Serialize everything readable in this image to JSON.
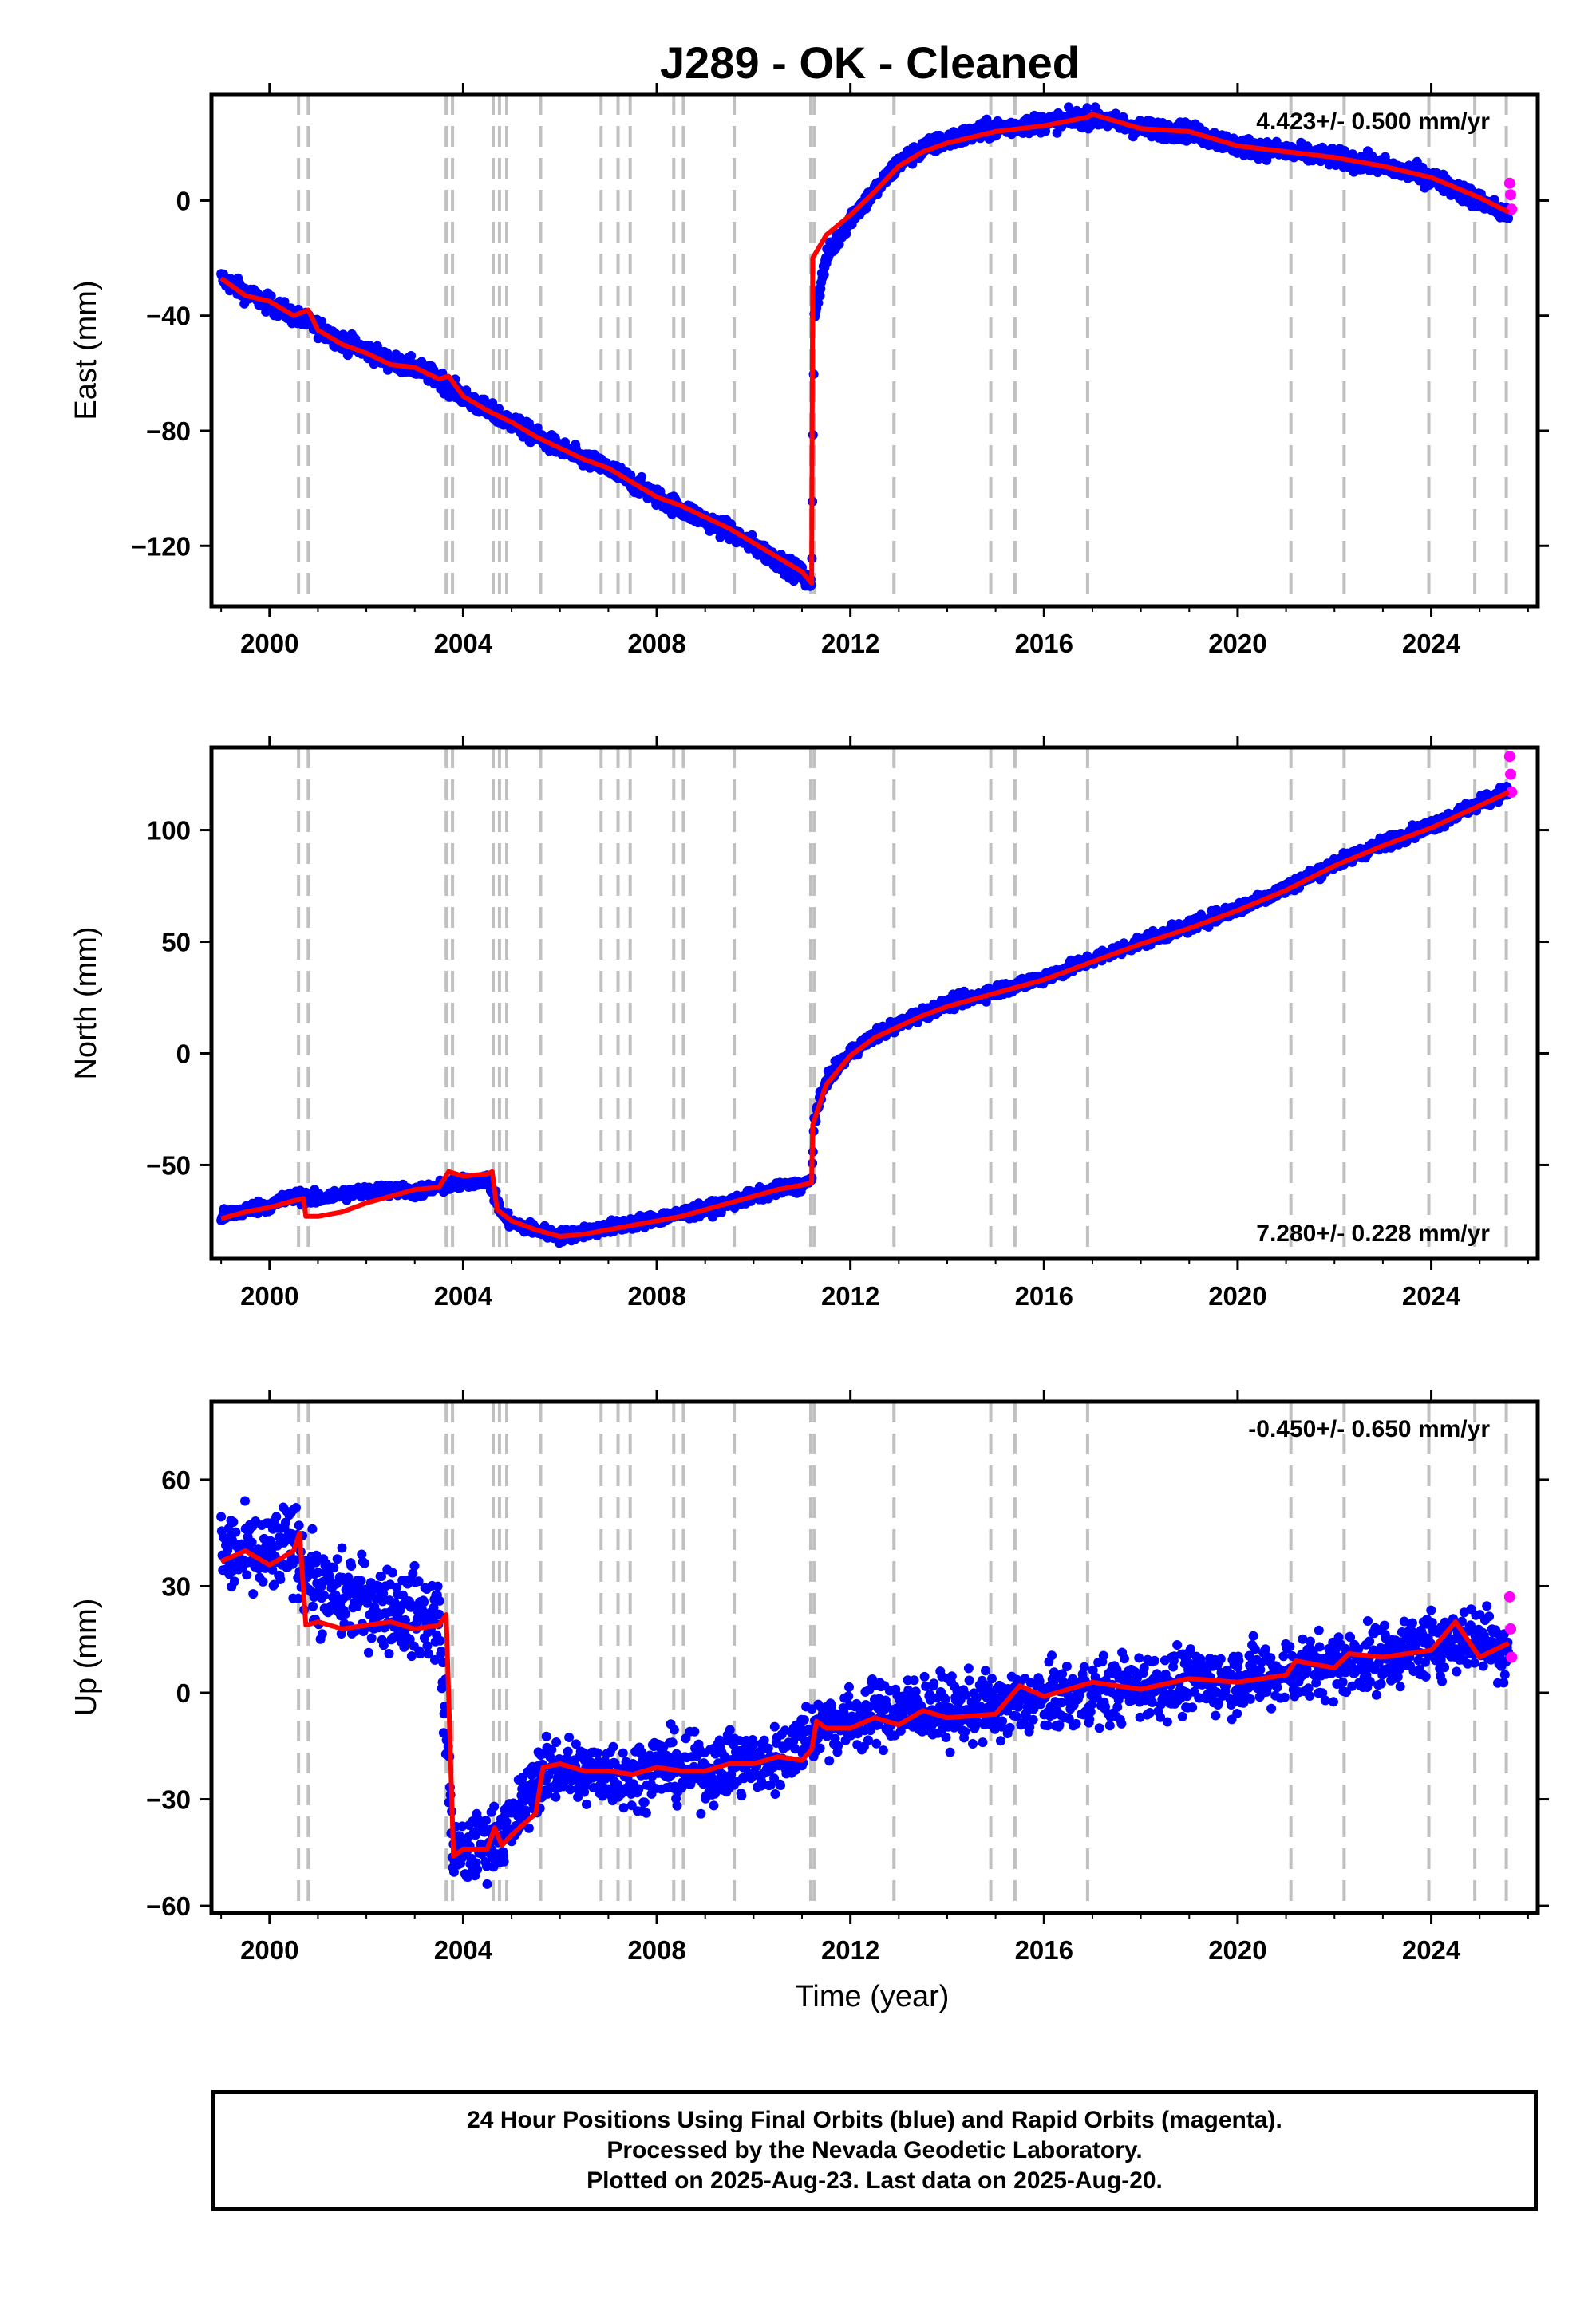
{
  "title": "J289  - OK - Cleaned",
  "xlabel": "Time (year)",
  "caption": {
    "line1": "24 Hour Positions Using Final Orbits (blue) and Rapid Orbits (magenta).",
    "line2": "Processed by the Nevada Geodetic Laboratory.",
    "line3": "Plotted on 2025-Aug-23. Last data on 2025-Aug-20."
  },
  "colors": {
    "final_points": "#0000ff",
    "rapid_points": "#ff00ff",
    "model": "#ff0000",
    "event_lines": "#c0c0c0"
  },
  "chart_data": [
    {
      "type": "scatter",
      "component": "east",
      "ylabel": "East (mm)",
      "rate_text": "4.423+/- 0.500 mm/yr",
      "rate_position": "top-right",
      "xlim": [
        1998.8,
        2026.2
      ],
      "ylim": [
        -141,
        37
      ],
      "xticks": [
        2000,
        2004,
        2008,
        2012,
        2016,
        2020,
        2024
      ],
      "yticks": [
        -120,
        -80,
        -40,
        0
      ],
      "event_lines": [
        2000.6,
        2000.8,
        2003.65,
        2003.78,
        2004.62,
        2004.75,
        2004.9,
        2005.6,
        2006.85,
        2007.2,
        2007.45,
        2008.35,
        2008.55,
        2009.6,
        2011.18,
        2011.25,
        2012.9,
        2014.9,
        2015.4,
        2016.9,
        2021.1,
        2022.2,
        2023.95,
        2024.9,
        2025.55
      ],
      "series": [
        {
          "name": "Final Orbits",
          "x": [
            1999.0,
            1999.5,
            2000.0,
            2000.5,
            2001.0,
            2001.5,
            2002.0,
            2002.5,
            2003.0,
            2003.5,
            2004.0,
            2004.5,
            2005.0,
            2005.5,
            2006.0,
            2006.5,
            2007.0,
            2007.5,
            2008.0,
            2008.5,
            2009.0,
            2009.5,
            2010.0,
            2010.5,
            2011.0,
            2011.2,
            2011.25,
            2011.5,
            2012.0,
            2012.5,
            2013.0,
            2013.5,
            2014.0,
            2015.0,
            2016.0,
            2017.0,
            2018.0,
            2019.0,
            2020.0,
            2021.0,
            2022.0,
            2023.0,
            2024.0,
            2025.0,
            2025.6
          ],
          "values": [
            -27,
            -32,
            -36,
            -40,
            -44,
            -49,
            -52,
            -56,
            -58,
            -62,
            -68,
            -73,
            -77,
            -82,
            -86,
            -90,
            -93,
            -98,
            -103,
            -107,
            -111,
            -115,
            -120,
            -125,
            -130,
            -134,
            -40,
            -20,
            -6,
            3,
            13,
            18,
            21,
            25,
            27,
            29,
            25,
            24,
            19,
            17,
            15,
            12,
            8,
            0,
            -5
          ]
        },
        {
          "name": "Rapid Orbits",
          "x": [
            2025.62,
            2025.64,
            2025.66
          ],
          "values": [
            6,
            2,
            -3
          ]
        }
      ],
      "model": {
        "x": [
          1999.0,
          1999.5,
          2000.0,
          2000.5,
          2000.8,
          2001.0,
          2001.5,
          2002.0,
          2002.5,
          2003.0,
          2003.5,
          2003.7,
          2004.0,
          2004.5,
          2005.0,
          2005.5,
          2006.0,
          2006.5,
          2007.0,
          2007.5,
          2008.0,
          2008.5,
          2009.0,
          2009.5,
          2010.0,
          2010.5,
          2011.0,
          2011.2,
          2011.22,
          2011.5,
          2012.0,
          2012.5,
          2013.0,
          2013.5,
          2014.0,
          2015.0,
          2016.0,
          2016.9,
          2017.0,
          2018.0,
          2019.0,
          2020.0,
          2021.0,
          2022.0,
          2023.0,
          2024.0,
          2025.0,
          2025.6
        ],
        "values": [
          -27,
          -33,
          -35,
          -40,
          -38,
          -45,
          -50,
          -53,
          -57,
          -58,
          -62,
          -61,
          -68,
          -73,
          -77,
          -82,
          -86,
          -90,
          -93,
          -98,
          -103,
          -106,
          -110,
          -114,
          -119,
          -124,
          -129,
          -133,
          -20,
          -12,
          -5,
          3,
          12,
          17,
          20,
          24,
          26,
          29,
          30,
          25,
          24,
          19,
          17,
          15,
          12,
          8,
          1,
          -4
        ]
      }
    },
    {
      "type": "scatter",
      "component": "north",
      "ylabel": "North (mm)",
      "rate_text": "7.280+/- 0.228 mm/yr",
      "rate_position": "bottom-right",
      "xlim": [
        1998.8,
        2026.2
      ],
      "ylim": [
        -92,
        137
      ],
      "xticks": [
        2000,
        2004,
        2008,
        2012,
        2016,
        2020,
        2024
      ],
      "yticks": [
        -50,
        0,
        50,
        100
      ],
      "event_lines": [
        2000.6,
        2000.8,
        2003.65,
        2003.78,
        2004.62,
        2004.75,
        2004.9,
        2005.6,
        2006.85,
        2007.2,
        2007.45,
        2008.35,
        2008.55,
        2009.6,
        2011.18,
        2011.25,
        2012.9,
        2014.9,
        2015.4,
        2016.9,
        2021.1,
        2022.2,
        2023.95,
        2024.9,
        2025.55
      ],
      "series": [
        {
          "name": "Final Orbits",
          "x": [
            1999.0,
            1999.5,
            2000.0,
            2000.5,
            2001.0,
            2001.5,
            2002.0,
            2002.5,
            2003.0,
            2003.5,
            2004.0,
            2004.5,
            2004.8,
            2005.0,
            2005.5,
            2006.0,
            2006.5,
            2007.0,
            2007.5,
            2008.0,
            2008.5,
            2009.0,
            2009.5,
            2010.0,
            2010.5,
            2011.0,
            2011.2,
            2011.25,
            2011.5,
            2012.0,
            2012.5,
            2013.0,
            2013.5,
            2014.0,
            2015.0,
            2016.0,
            2017.0,
            2018.0,
            2019.0,
            2020.0,
            2021.0,
            2022.0,
            2023.0,
            2024.0,
            2025.0,
            2025.6
          ],
          "values": [
            -73,
            -70,
            -68,
            -64,
            -65,
            -63,
            -62,
            -61,
            -62,
            -60,
            -58,
            -56,
            -72,
            -76,
            -79,
            -82,
            -80,
            -78,
            -76,
            -74,
            -72,
            -70,
            -67,
            -64,
            -61,
            -59,
            -57,
            -30,
            -12,
            0,
            8,
            13,
            18,
            22,
            28,
            34,
            42,
            50,
            57,
            65,
            74,
            85,
            94,
            102,
            112,
            118
          ]
        },
        {
          "name": "Rapid Orbits",
          "x": [
            2025.62,
            2025.64,
            2025.66
          ],
          "values": [
            133,
            125,
            117
          ]
        }
      ],
      "model": {
        "x": [
          1999.0,
          1999.5,
          2000.0,
          2000.5,
          2000.7,
          2000.75,
          2001.0,
          2001.5,
          2002.0,
          2002.5,
          2003.0,
          2003.5,
          2003.7,
          2004.0,
          2004.5,
          2004.6,
          2004.7,
          2005.0,
          2005.5,
          2006.0,
          2006.5,
          2007.0,
          2007.5,
          2008.0,
          2008.5,
          2009.0,
          2009.5,
          2010.0,
          2010.5,
          2011.0,
          2011.2,
          2011.22,
          2011.5,
          2012.0,
          2012.5,
          2013.0,
          2013.5,
          2014.0,
          2015.0,
          2016.0,
          2017.0,
          2018.0,
          2019.0,
          2020.0,
          2021.0,
          2022.0,
          2023.0,
          2024.0,
          2025.0,
          2025.6
        ],
        "values": [
          -74,
          -71,
          -69,
          -66,
          -65,
          -73,
          -73,
          -71,
          -67,
          -64,
          -61,
          -60,
          -53,
          -55,
          -54,
          -53,
          -70,
          -75,
          -79,
          -82,
          -81,
          -79,
          -77,
          -75,
          -73,
          -70,
          -67,
          -64,
          -61,
          -59,
          -58,
          -32,
          -14,
          -1,
          7,
          12,
          17,
          21,
          27,
          33,
          41,
          49,
          56,
          64,
          73,
          84,
          93,
          101,
          111,
          117
        ]
      }
    },
    {
      "type": "scatter",
      "component": "up",
      "ylabel": "Up (mm)",
      "rate_text": "-0.450+/- 0.650 mm/yr",
      "rate_position": "top-right",
      "xlim": [
        1998.8,
        2026.2
      ],
      "ylim": [
        -62,
        82
      ],
      "xticks": [
        2000,
        2004,
        2008,
        2012,
        2016,
        2020,
        2024
      ],
      "yticks": [
        -60,
        -30,
        0,
        30,
        60
      ],
      "event_lines": [
        2000.6,
        2000.8,
        2003.65,
        2003.78,
        2004.62,
        2004.75,
        2004.9,
        2005.6,
        2006.85,
        2007.2,
        2007.45,
        2008.35,
        2008.55,
        2009.6,
        2011.18,
        2011.25,
        2012.9,
        2014.9,
        2015.4,
        2016.9,
        2021.1,
        2022.2,
        2023.95,
        2024.9,
        2025.55
      ],
      "series": [
        {
          "name": "Final Orbits",
          "x": [
            1999.0,
            1999.5,
            2000.0,
            2000.5,
            2001.0,
            2001.5,
            2002.0,
            2002.5,
            2003.0,
            2003.5,
            2003.8,
            2004.0,
            2004.5,
            2005.0,
            2005.5,
            2006.0,
            2006.5,
            2007.0,
            2007.5,
            2008.0,
            2008.5,
            2009.0,
            2009.5,
            2010.0,
            2010.5,
            2011.0,
            2011.5,
            2012.0,
            2012.5,
            2013.0,
            2013.5,
            2014.0,
            2015.0,
            2016.0,
            2017.0,
            2018.0,
            2019.0,
            2020.0,
            2021.0,
            2022.0,
            2023.0,
            2024.0,
            2025.0,
            2025.6
          ],
          "values": [
            40,
            38,
            38,
            42,
            28,
            27,
            26,
            24,
            22,
            21,
            -45,
            -46,
            -42,
            -38,
            -24,
            -21,
            -23,
            -22,
            -24,
            -20,
            -22,
            -22,
            -20,
            -20,
            -19,
            -13,
            -8,
            -8,
            -6,
            -5,
            -4,
            -5,
            -4,
            -2,
            0,
            2,
            3,
            4,
            6,
            8,
            10,
            14,
            16,
            12
          ]
        },
        {
          "name": "Rapid Orbits",
          "x": [
            2025.62,
            2025.64,
            2025.66
          ],
          "values": [
            27,
            18,
            10
          ]
        }
      ],
      "model": {
        "x": [
          1999.0,
          1999.5,
          2000.0,
          2000.5,
          2000.62,
          2000.75,
          2001.0,
          2001.5,
          2002.0,
          2002.5,
          2003.0,
          2003.5,
          2003.65,
          2003.8,
          2004.0,
          2004.5,
          2004.65,
          2004.8,
          2005.0,
          2005.5,
          2005.65,
          2006.0,
          2006.5,
          2007.0,
          2007.5,
          2008.0,
          2008.5,
          2009.0,
          2009.5,
          2010.0,
          2010.5,
          2011.0,
          2011.2,
          2011.3,
          2011.5,
          2012.0,
          2012.5,
          2013.0,
          2013.5,
          2014.0,
          2015.0,
          2015.5,
          2016.0,
          2017.0,
          2018.0,
          2019.0,
          2020.0,
          2021.0,
          2021.2,
          2022.0,
          2022.3,
          2023.0,
          2024.0,
          2024.5,
          2025.0,
          2025.6
        ],
        "values": [
          37,
          40,
          36,
          40,
          45,
          19,
          20,
          18,
          19,
          20,
          18,
          19,
          22,
          -46,
          -44,
          -44,
          -38,
          -43,
          -40,
          -34,
          -21,
          -20,
          -22,
          -22,
          -23,
          -21,
          -22,
          -22,
          -20,
          -20,
          -18,
          -19,
          -16,
          -8,
          -10,
          -10,
          -7,
          -9,
          -5,
          -7,
          -6,
          2,
          -1,
          3,
          1,
          4,
          3,
          5,
          9,
          7,
          11,
          10,
          12,
          20,
          10,
          14
        ]
      }
    }
  ]
}
